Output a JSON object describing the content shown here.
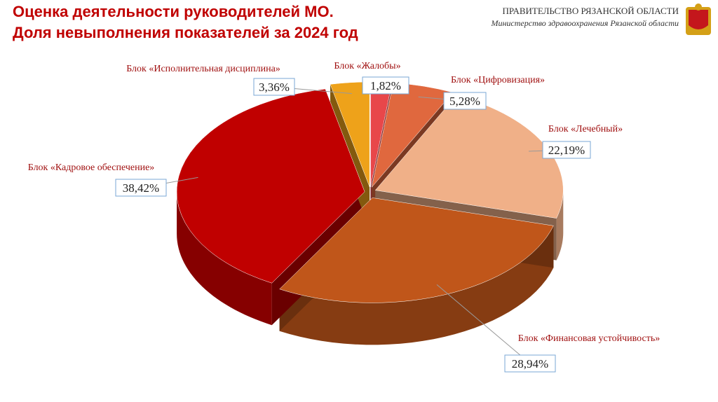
{
  "header": {
    "organization": "ПРАВИТЕЛЬСТВО РЯЗАНСКОЙ ОБЛАСТИ",
    "ministry": "Министерство здравоохранения Рязанской области"
  },
  "chart_data": {
    "type": "pie",
    "title": "Оценка деятельности руководителей МО.",
    "subtitle": "Доля невыполнения показателей за 2024 год",
    "categories": [
      "Блок «Жалобы»",
      "Блок «Цифровизация»",
      "Блок «Лечебный»",
      "Блок «Финансовая устойчивость»",
      "Блок «Кадровое обеспечение»",
      "Блок «Исполнительная дисциплина»"
    ],
    "values": [
      1.82,
      5.28,
      22.19,
      28.94,
      38.42,
      3.36
    ],
    "value_labels": [
      "1,82%",
      "5,28%",
      "22,19%",
      "28,94%",
      "38,42%",
      "3,36%"
    ],
    "colors": [
      "#e8474a",
      "#e0683e",
      "#f0b088",
      "#c0561a",
      "#c00000",
      "#eea21a"
    ]
  }
}
